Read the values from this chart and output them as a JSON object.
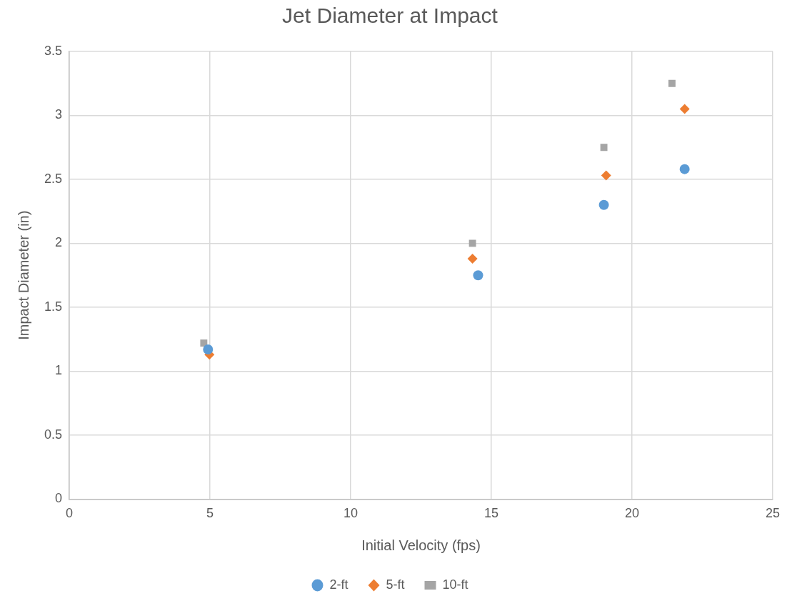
{
  "chart_data": {
    "type": "scatter",
    "title": "Jet Diameter at Impact",
    "xlabel": "Initial Velocity (fps)",
    "ylabel": "Impact Diameter (in)",
    "xlim": [
      0,
      25
    ],
    "xticks": [
      0,
      5,
      10,
      15,
      20,
      25
    ],
    "ylim": [
      0,
      3.5
    ],
    "yticks": [
      0,
      0.5,
      1,
      1.5,
      2,
      2.5,
      3,
      3.5
    ],
    "grid": true,
    "legend": "bottom",
    "series": [
      {
        "name": "2-ft",
        "color": "#5b9bd5",
        "marker": "circle",
        "x": [
          4.93,
          14.53,
          19.0,
          21.87
        ],
        "values": [
          1.17,
          1.75,
          2.3,
          2.58
        ]
      },
      {
        "name": "5-ft",
        "color": "#ed7d31",
        "marker": "diamond",
        "x": [
          4.98,
          14.33,
          19.08,
          21.87
        ],
        "values": [
          1.13,
          1.88,
          2.53,
          3.05
        ]
      },
      {
        "name": "10-ft",
        "color": "#a5a5a5",
        "marker": "square",
        "x": [
          4.78,
          14.33,
          19.0,
          21.42
        ],
        "values": [
          1.22,
          2.0,
          2.75,
          3.25
        ]
      }
    ]
  }
}
